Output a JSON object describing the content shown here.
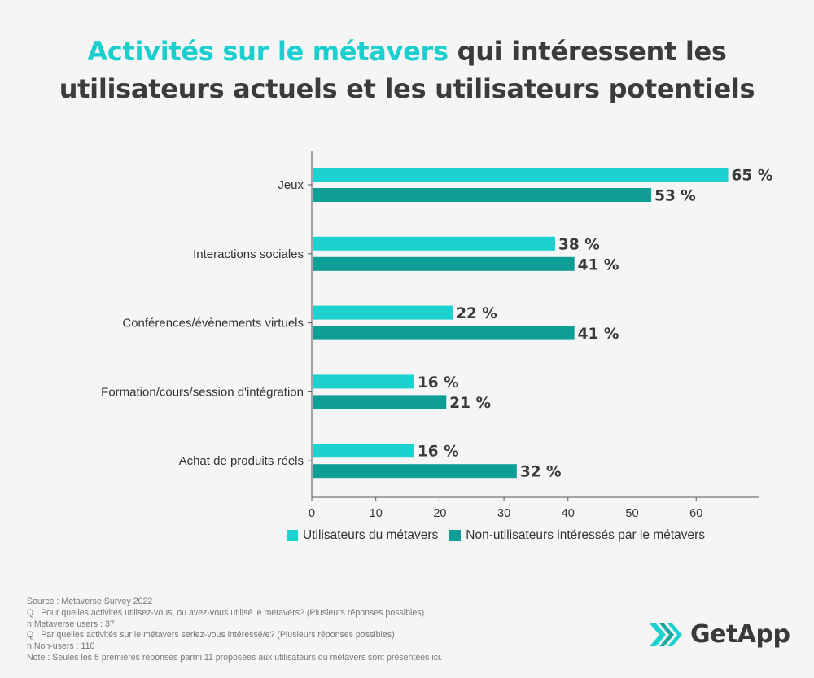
{
  "title": {
    "highlight": "Activités sur le métavers",
    "rest_line1": " qui intéressent les",
    "line2": "utilisateurs actuels et les utilisateurs potentiels"
  },
  "colors": {
    "accent": "#1ccfcf",
    "series1": "#1dd1cf",
    "series2": "#0e9e96",
    "title_text": "#3b3b3b"
  },
  "chart_data": {
    "type": "bar",
    "orientation": "horizontal",
    "categories": [
      "Jeux",
      "Interactions sociales",
      "Conférences/évènements virtuels",
      "Formation/cours/session d'intégration",
      "Achat de produits réels"
    ],
    "series": [
      {
        "name": "Utilisateurs du métavers",
        "values": [
          65,
          38,
          22,
          16,
          16
        ],
        "color": "#1dd1cf"
      },
      {
        "name": "Non-utilisateurs intéressés par le métavers",
        "values": [
          53,
          41,
          41,
          21,
          32
        ],
        "color": "#0e9e96"
      }
    ],
    "value_labels": [
      [
        "65 %",
        "38 %",
        "22 %",
        "16 %",
        "16 %"
      ],
      [
        "53 %",
        "41 %",
        "41 %",
        "21 %",
        "32 %"
      ]
    ],
    "xticks": [
      0,
      10,
      20,
      30,
      40,
      50,
      60
    ],
    "xlim": [
      0,
      70
    ],
    "legend_position": "bottom",
    "grid": false
  },
  "footer": {
    "lines": [
      "Source : Metaverse Survey 2022",
      "Q : Pour quelles activités utilisez-vous, ou avez-vous utilisé le métavers? (Plusieurs réponses possibles)",
      "n Metaverse users : 37",
      "Q : Par quelles activités sur le métavers seriez-vous intéressé/e? (Plusieurs réponses possibles)",
      "n Non-users : 110",
      "Note : Seules les 5 premières réponses parmi 11 proposées aux utilisateurs du métavers sont présentées ici."
    ]
  },
  "logo": {
    "text": "GetApp",
    "icon": "getapp-chevrons-icon"
  }
}
